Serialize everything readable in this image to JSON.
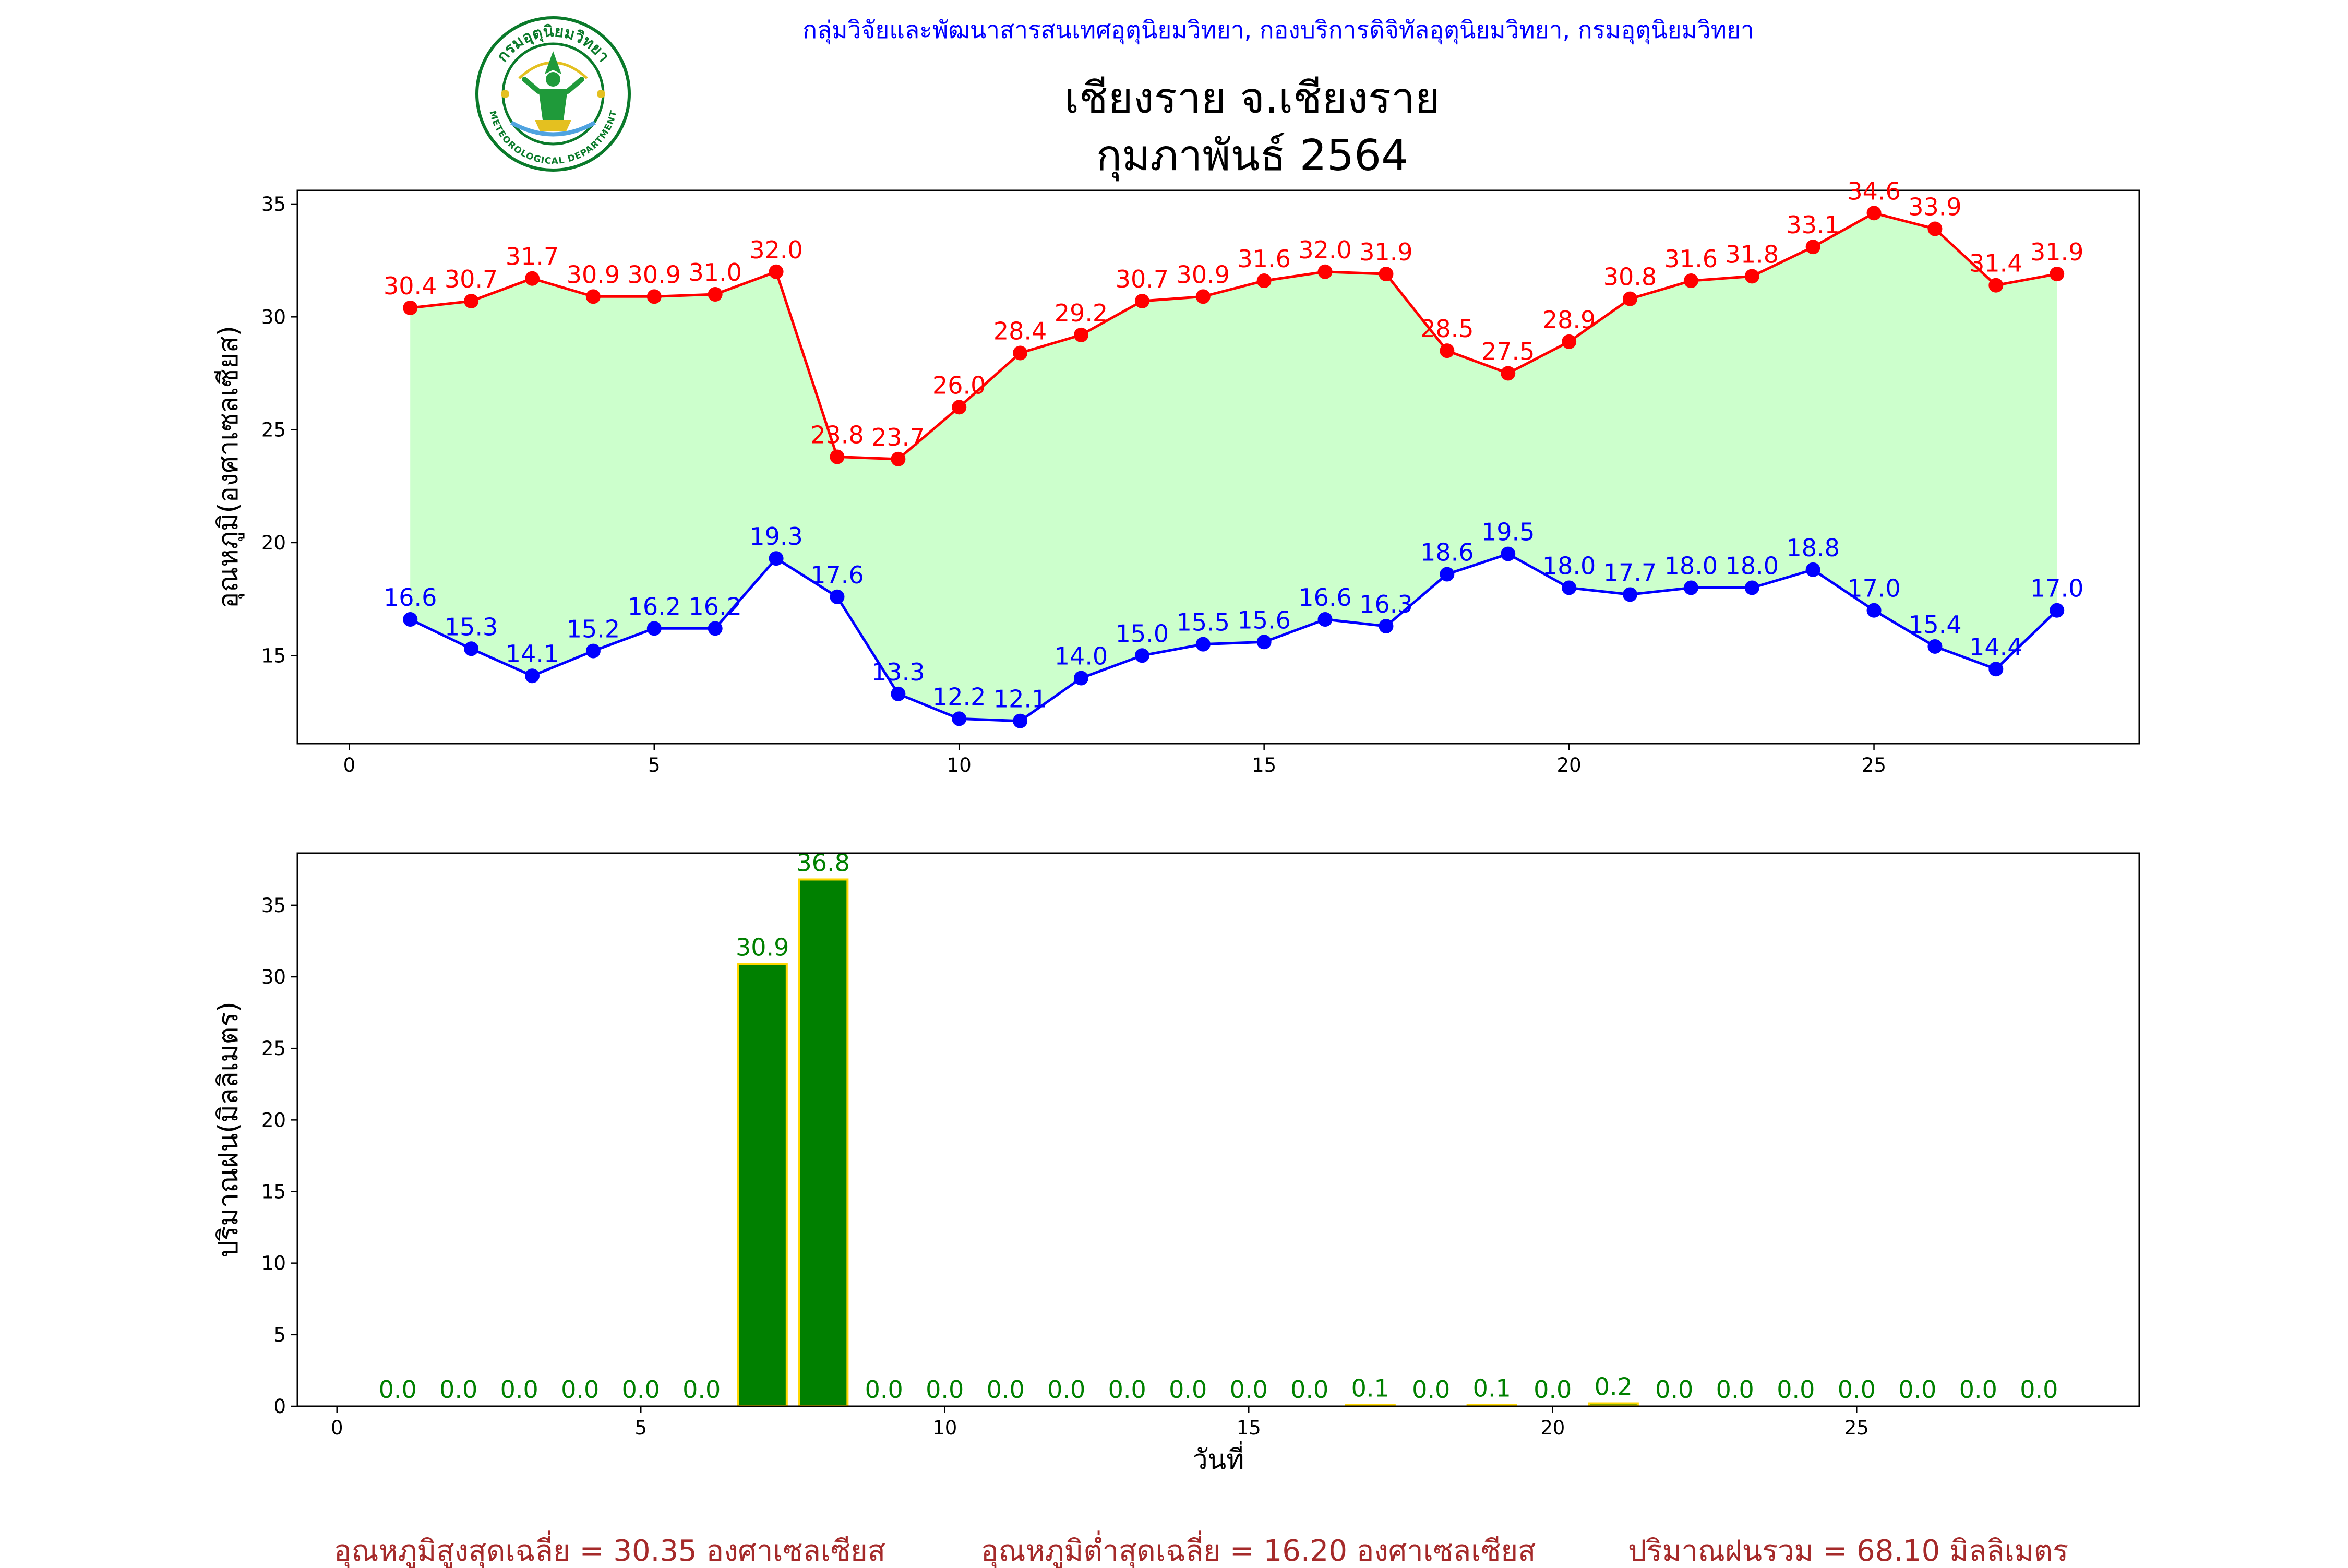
{
  "header": {
    "department_line": "กลุ่มวิจัยและพัฒนาสารสนเทศอุตุนิยมวิทยา, กองบริการดิจิทัลอุตุนิยมวิทยา, กรมอุตุนิยมวิทยา",
    "station_title": "เชียงราย จ.เชียงราย",
    "month_title": "กุมภาพันธ์ 2564"
  },
  "logo": {
    "name": "meteorological-department-seal",
    "text_top": "กรมอุตุนิยมวิทยา",
    "text_bottom": "METEOROLOGICAL DEPARTMENT",
    "ring_color": "#0a7a2a",
    "figure_color": "#1f9a3a",
    "accent_color": "#e4c020"
  },
  "colors": {
    "max_series": "#ff0000",
    "min_series": "#0000ff",
    "fill_between": "#ccffcc",
    "rain_bar": "#008000",
    "rain_bar_edge": "#ffd700",
    "rain_labels": "#008000",
    "stats_text": "#a52a2a"
  },
  "chart_data": [
    {
      "type": "line",
      "ylabel": "อุณหภูมิ(องศาเซลเซียส)",
      "xlim": [
        -0.85,
        29.35
      ],
      "ylim": [
        11.1,
        35.6
      ],
      "xticks": [
        0,
        5,
        10,
        15,
        20,
        25
      ],
      "yticks": [
        15,
        20,
        25,
        30,
        35
      ],
      "fill_between_series": true,
      "x": [
        1,
        2,
        3,
        4,
        5,
        6,
        7,
        8,
        9,
        10,
        11,
        12,
        13,
        14,
        15,
        16,
        17,
        18,
        19,
        20,
        21,
        22,
        23,
        24,
        25,
        26,
        27,
        28
      ],
      "series": [
        {
          "values": [
            30.4,
            30.7,
            31.7,
            30.9,
            30.9,
            31.0,
            32.0,
            23.8,
            23.7,
            26.0,
            28.4,
            29.2,
            30.7,
            30.9,
            31.6,
            32.0,
            31.9,
            28.5,
            27.5,
            28.9,
            30.8,
            31.6,
            31.8,
            33.1,
            34.6,
            33.9,
            31.4,
            31.9
          ],
          "color": "#ff0000"
        },
        {
          "values": [
            16.6,
            15.3,
            14.1,
            15.2,
            16.2,
            16.2,
            19.3,
            17.6,
            13.3,
            12.2,
            12.1,
            14.0,
            15.0,
            15.5,
            15.6,
            16.6,
            16.3,
            18.6,
            19.5,
            18.0,
            17.7,
            18.0,
            18.0,
            18.8,
            17.0,
            15.4,
            14.4,
            17.0
          ],
          "color": "#0000ff"
        }
      ]
    },
    {
      "type": "bar",
      "xlabel": "วันที่",
      "ylabel": "ปริมาณฝน(มิลลิเมตร)",
      "xlim": [
        -0.65,
        29.65
      ],
      "ylim": [
        0,
        38.64
      ],
      "xticks": [
        0,
        5,
        10,
        15,
        20,
        25
      ],
      "yticks": [
        0,
        5,
        10,
        15,
        20,
        25,
        30,
        35
      ],
      "x": [
        1,
        2,
        3,
        4,
        5,
        6,
        7,
        8,
        9,
        10,
        11,
        12,
        13,
        14,
        15,
        16,
        17,
        18,
        19,
        20,
        21,
        22,
        23,
        24,
        25,
        26,
        27,
        28
      ],
      "values": [
        0.0,
        0.0,
        0.0,
        0.0,
        0.0,
        0.0,
        30.9,
        36.8,
        0.0,
        0.0,
        0.0,
        0.0,
        0.0,
        0.0,
        0.0,
        0.0,
        0.1,
        0.0,
        0.1,
        0.0,
        0.2,
        0.0,
        0.0,
        0.0,
        0.0,
        0.0,
        0.0,
        0.0
      ],
      "color": "#008000",
      "edge_color": "#ffd700"
    }
  ],
  "stats": {
    "avg_max": "อุณหภูมิสูงสุดเฉลี่ย = 30.35 องศาเซลเซียส",
    "avg_min": "อุณหภูมิต่ำสุดเฉลี่ย = 16.20 องศาเซลเซียส",
    "total_rain": "ปริมาณฝนรวม = 68.10 มิลลิเมตร"
  }
}
